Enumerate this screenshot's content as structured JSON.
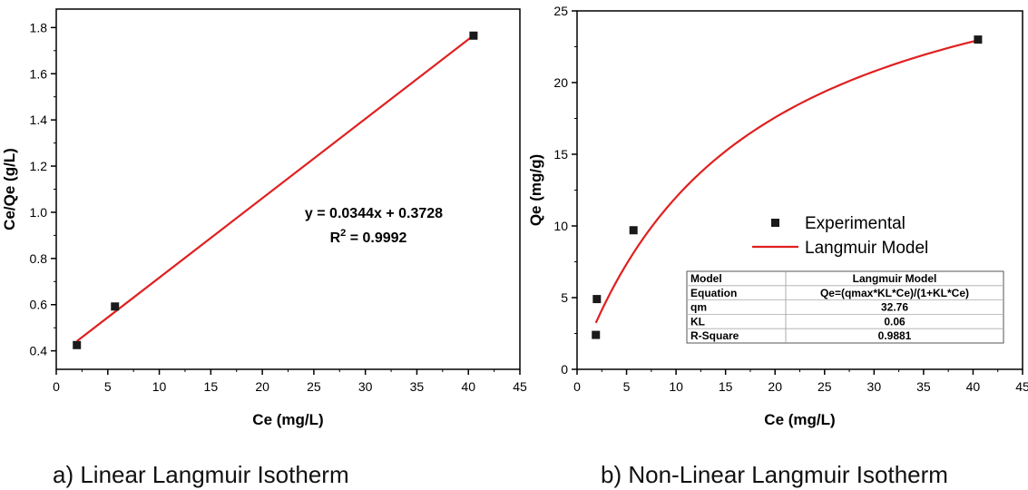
{
  "captions": {
    "left": "a)   Linear Langmuir Isotherm",
    "right": "b) Non-Linear Langmuir Isotherm"
  },
  "chart_data": [
    {
      "type": "scatter",
      "xlabel": "Ce (mg/L)",
      "ylabel": "Ce/Qe (g/L)",
      "xlim": [
        0,
        45
      ],
      "ylim": [
        0.32,
        1.88
      ],
      "xticks": [
        0,
        5,
        10,
        15,
        20,
        25,
        30,
        35,
        40,
        45
      ],
      "yticks": [
        0.4,
        0.6,
        0.8,
        1.0,
        1.2,
        1.4,
        1.6,
        1.8
      ],
      "ytick_labels": [
        "0.4",
        "0.6",
        "0.8",
        "1.0",
        "1.2",
        "1.4",
        "1.6",
        "1.8"
      ],
      "points": {
        "x": [
          2.0,
          5.7,
          40.5
        ],
        "y": [
          0.425,
          0.592,
          1.765
        ]
      },
      "fit": {
        "slope": 0.0344,
        "intercept": 0.3728,
        "x_range": [
          2.0,
          40.5
        ],
        "color": "#e02020"
      },
      "marker_color": "#1a1a1a",
      "annotation": {
        "equation": "y = 0.0344x + 0.3728",
        "r2_label": "R",
        "r2_sup": "2",
        "r2_value": " = 0.9992"
      }
    },
    {
      "type": "scatter",
      "xlabel": "Ce (mg/L)",
      "ylabel": "Qe (mg/g)",
      "xlim": [
        0,
        45
      ],
      "ylim": [
        0,
        25
      ],
      "xticks": [
        0,
        5,
        10,
        15,
        20,
        25,
        30,
        35,
        40,
        45
      ],
      "yticks": [
        0,
        5,
        10,
        15,
        20,
        25
      ],
      "ytick_labels": [
        "0",
        "5",
        "10",
        "15",
        "20",
        "25"
      ],
      "points": {
        "x": [
          1.9,
          2.0,
          5.7,
          40.5
        ],
        "y": [
          2.4,
          4.9,
          9.7,
          23.0
        ]
      },
      "fit": {
        "model": "langmuir",
        "qm": 32.76,
        "kl": 0.0578,
        "x_range": [
          1.9,
          40.5
        ],
        "color": "#e02020"
      },
      "marker_color": "#1a1a1a",
      "legend": {
        "position": "center-right",
        "experimental": "Experimental",
        "model": "Langmuir Model"
      },
      "table": [
        [
          "Model",
          "Langmuir Model"
        ],
        [
          "Equation",
          "Qe=(qmax*KL*Ce)/(1+KL*Ce)"
        ],
        [
          "qm",
          "32.76"
        ],
        [
          "KL",
          "0.06"
        ],
        [
          "R-Square",
          "0.9881"
        ]
      ]
    }
  ]
}
